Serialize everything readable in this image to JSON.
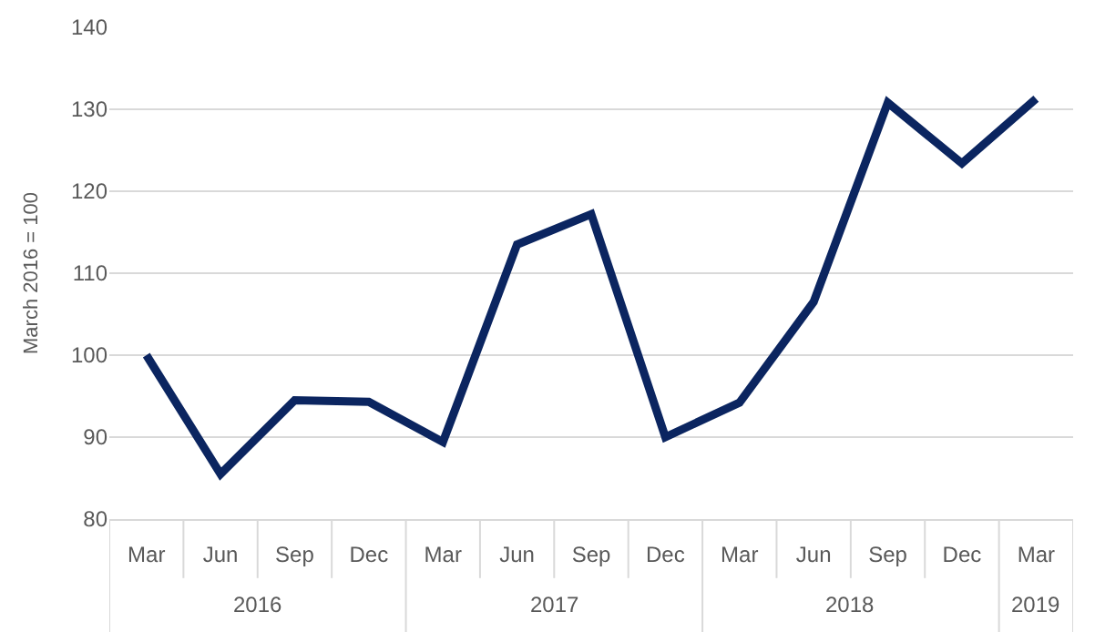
{
  "chart_data": {
    "type": "line",
    "ylabel": "March 2016 = 100",
    "categories": [
      "Mar",
      "Jun",
      "Sep",
      "Dec",
      "Mar",
      "Jun",
      "Sep",
      "Dec",
      "Mar",
      "Jun",
      "Sep",
      "Dec",
      "Mar"
    ],
    "annotations": [
      "2016",
      "2017",
      "2018",
      "2019"
    ],
    "series": [
      {
        "color": "#0b2560",
        "values": [
          100,
          85.5,
          94.5,
          94.3,
          89.4,
          113.5,
          117.2,
          90,
          94.2,
          106.5,
          130.8,
          123.4,
          131.3
        ]
      }
    ],
    "ylim": [
      80,
      140
    ],
    "yticks": [
      80,
      90,
      100,
      110,
      120,
      130,
      140
    ],
    "grid": "y",
    "legend": false,
    "marker": "none",
    "line_style": "solid"
  }
}
